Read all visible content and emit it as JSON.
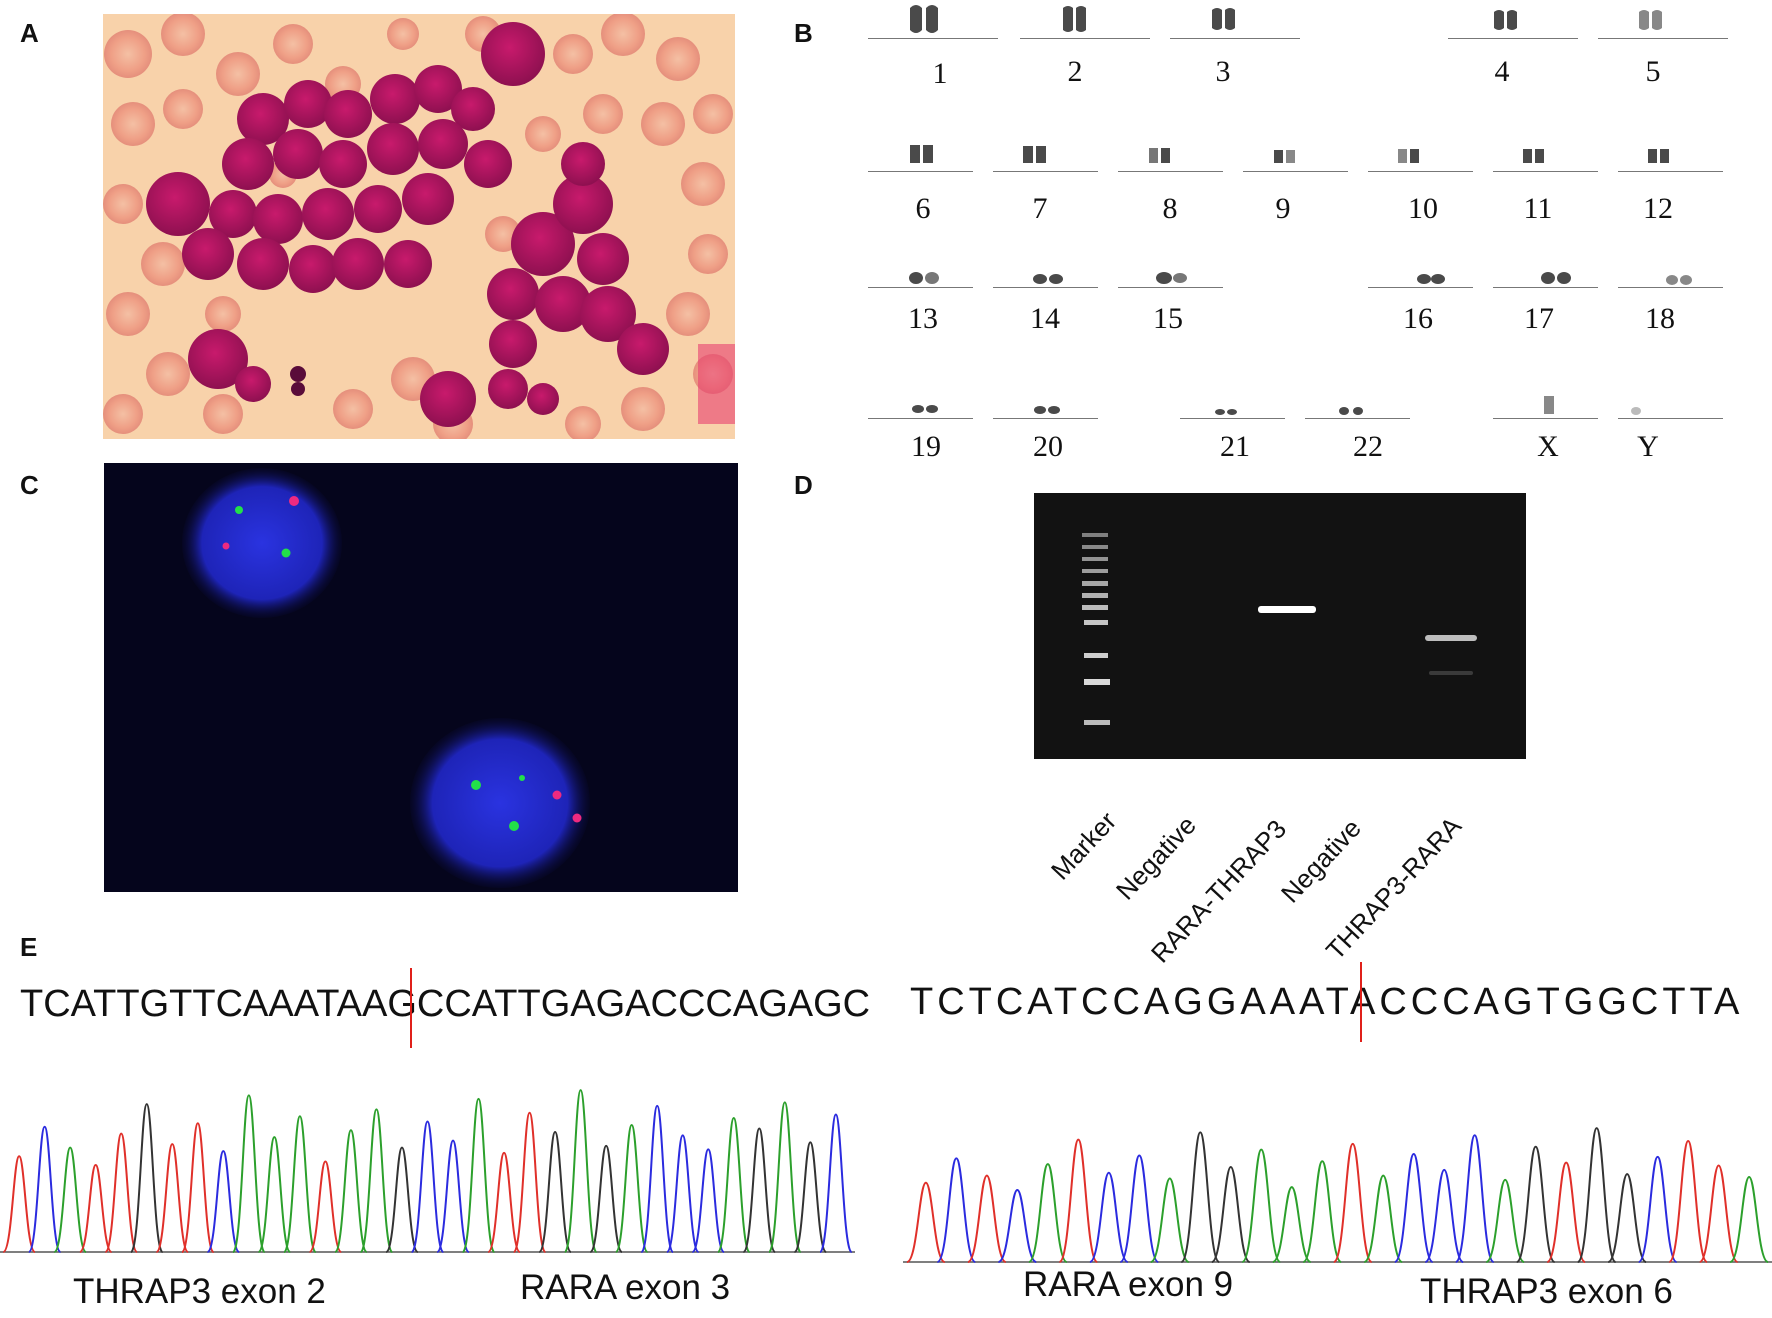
{
  "panels": {
    "a": "A",
    "b": "B",
    "c": "C",
    "d": "D",
    "e": "E"
  },
  "karyotype": {
    "row1": [
      "1",
      "2",
      "3",
      "4",
      "5"
    ],
    "row2": [
      "6",
      "7",
      "8",
      "9",
      "10",
      "11",
      "12"
    ],
    "row3": [
      "13",
      "14",
      "15",
      "16",
      "17",
      "18"
    ],
    "row4": [
      "19",
      "20",
      "21",
      "22",
      "X",
      "Y"
    ]
  },
  "gel": {
    "lanes": [
      "Marker",
      "Negative",
      "RARA-THRAP3",
      "Negative",
      "THRAP3-RARA"
    ]
  },
  "sequencing": {
    "left": {
      "seq_before": "TCATTGTTCAAATAAG",
      "seq_after": "CCATTGAGACCCAGAGC",
      "exon_left": "THRAP3 exon 2",
      "exon_right": "RARA exon 3"
    },
    "right": {
      "seq_before": "TCTCATCCAGGAAAT",
      "seq_after": "ACCCAGTGGCTTA",
      "exon_left": "RARA exon 9",
      "exon_right": "THRAP3 exon 6"
    },
    "base_colors": {
      "A": "#2ca02c",
      "C": "#2b2bdf",
      "G": "#333333",
      "T": "#e0302a"
    },
    "junction_color": "#e0201a"
  }
}
